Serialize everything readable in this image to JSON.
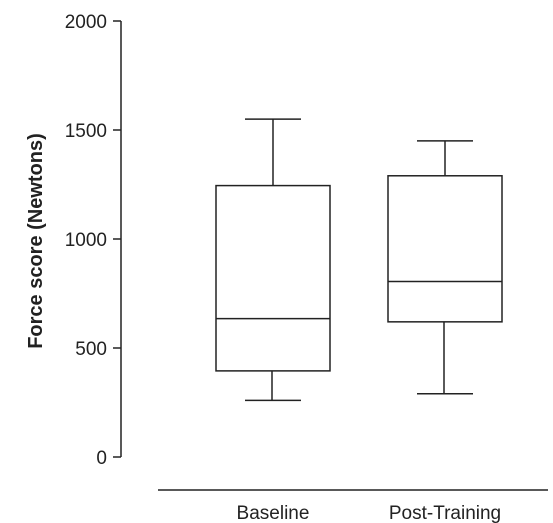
{
  "chart_data": {
    "type": "box",
    "title": "",
    "xlabel": "",
    "ylabel": "Force score (Newtons)",
    "ylim": [
      0,
      2000
    ],
    "yticks": [
      "0",
      "500",
      "1000",
      "1500",
      "2000"
    ],
    "categories": [
      "Baseline",
      "Post-Training"
    ],
    "boxes": [
      {
        "category": "Baseline",
        "whisker_low": 260,
        "q1": 395,
        "median": 635,
        "q3": 1245,
        "whisker_high": 1550
      },
      {
        "category": "Post-Training",
        "whisker_low": 290,
        "q1": 620,
        "median": 805,
        "q3": 1290,
        "whisker_high": 1450
      }
    ],
    "grid": false,
    "legend": "none"
  }
}
